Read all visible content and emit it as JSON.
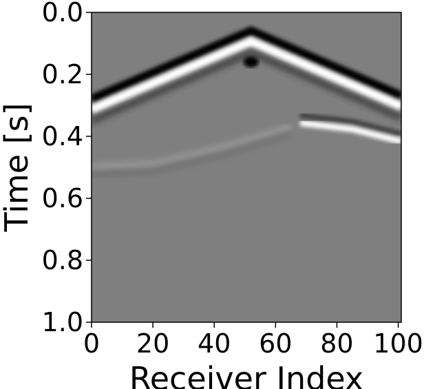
{
  "chart_data": {
    "type": "heatmap",
    "title": "",
    "xlabel": "Receiver Index",
    "ylabel": "Time [s]",
    "colormap": "gray",
    "xlim": [
      0,
      101
    ],
    "ylim": [
      1.0,
      0.0
    ],
    "y_axis_inverted": true,
    "grid": false,
    "x_ticks": [
      0,
      20,
      40,
      60,
      80,
      100
    ],
    "x_tick_labels": [
      "0",
      "20",
      "40",
      "60",
      "80",
      "100"
    ],
    "y_ticks": [
      0.0,
      0.2,
      0.4,
      0.6,
      0.8,
      1.0
    ],
    "y_tick_labels": [
      "0.0",
      "0.2",
      "0.4",
      "0.6",
      "0.8",
      "1.0"
    ],
    "events": [
      {
        "name": "direct-arrival",
        "apex_receiver": 52,
        "points": [
          [
            0,
            0.31
          ],
          [
            52,
            0.09
          ],
          [
            101,
            0.3
          ]
        ],
        "polarity": "white with dark precursor"
      },
      {
        "name": "reflection-right",
        "points": [
          [
            68,
            0.35
          ],
          [
            85,
            0.37
          ],
          [
            101,
            0.41
          ]
        ],
        "polarity": "white"
      },
      {
        "name": "reflection-left",
        "points": [
          [
            0,
            0.5
          ],
          [
            20,
            0.49
          ],
          [
            45,
            0.43
          ],
          [
            65,
            0.37
          ]
        ],
        "polarity": "faint white"
      }
    ]
  }
}
